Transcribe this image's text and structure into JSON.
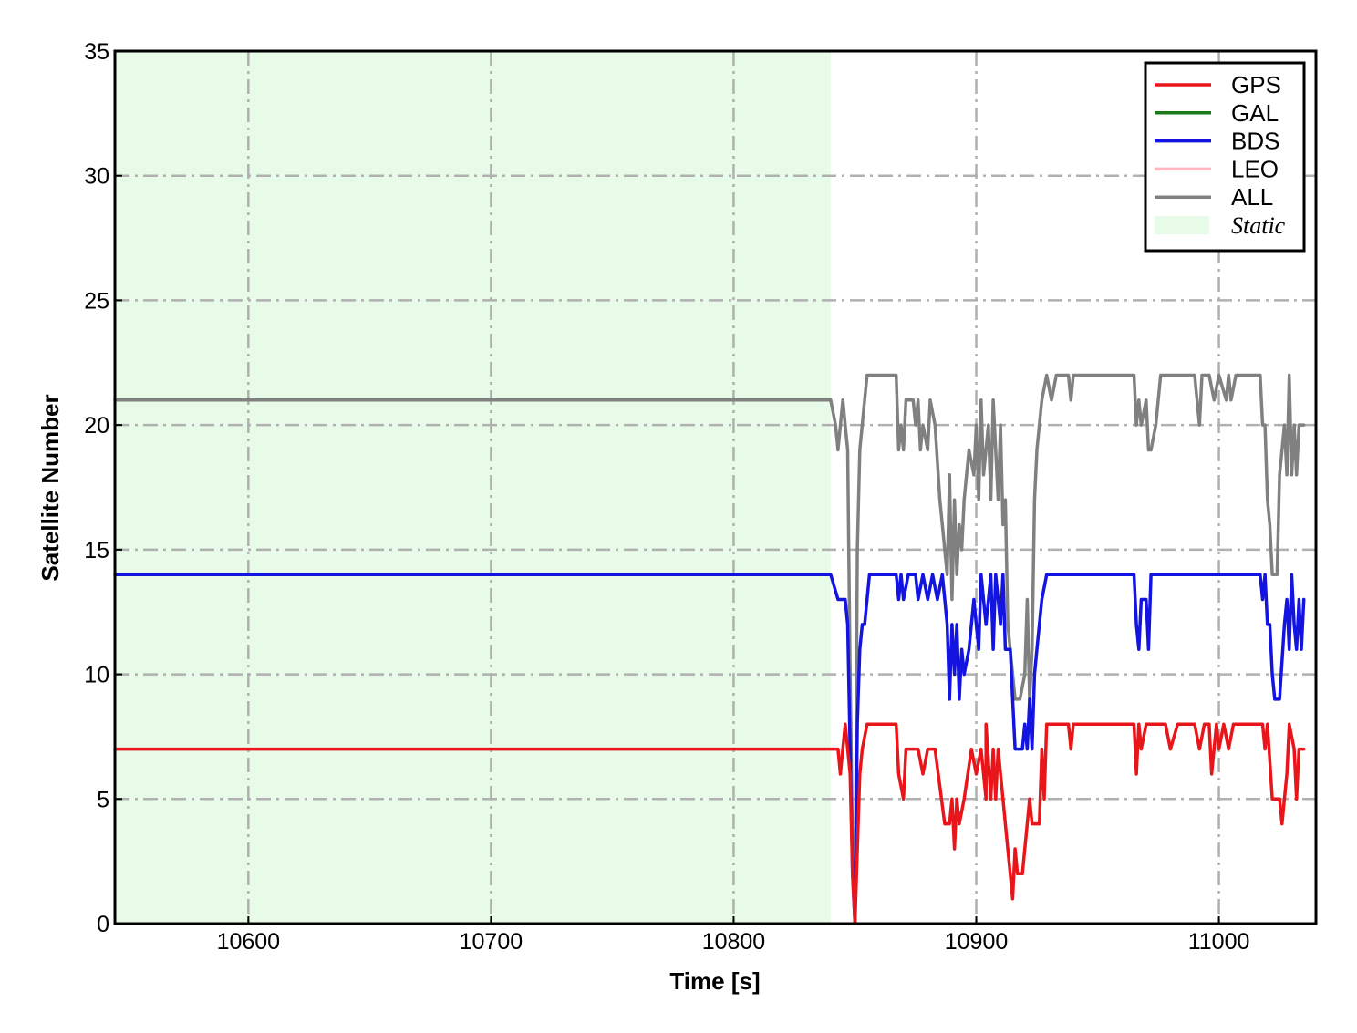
{
  "chart_data": {
    "type": "line",
    "title": "",
    "xlabel": "Time [s]",
    "ylabel": "Satellite Number",
    "xlim": [
      10545,
      11040
    ],
    "ylim": [
      0,
      35
    ],
    "xticks": [
      10600,
      10700,
      10800,
      10900,
      11000
    ],
    "yticks": [
      0,
      5,
      10,
      15,
      20,
      25,
      30,
      35
    ],
    "grid": true,
    "legend_position": "top-right",
    "static_region": {
      "label": "Static",
      "x_start": 10545,
      "x_end": 10840,
      "color": "#e8fbe8"
    },
    "series": [
      {
        "name": "GPS",
        "color": "#e8161a",
        "points": [
          [
            10545,
            7
          ],
          [
            10840,
            7
          ],
          [
            10843,
            7
          ],
          [
            10844,
            6
          ],
          [
            10846,
            8
          ],
          [
            10848,
            6
          ],
          [
            10849,
            2
          ],
          [
            10850,
            0
          ],
          [
            10852,
            6
          ],
          [
            10853,
            7
          ],
          [
            10855,
            8
          ],
          [
            10867,
            8
          ],
          [
            10868,
            6
          ],
          [
            10870,
            5
          ],
          [
            10871,
            7
          ],
          [
            10876,
            7
          ],
          [
            10878,
            6
          ],
          [
            10880,
            7
          ],
          [
            10883,
            7
          ],
          [
            10887,
            4
          ],
          [
            10889,
            4
          ],
          [
            10890,
            5
          ],
          [
            10891,
            3
          ],
          [
            10892,
            5
          ],
          [
            10893,
            4
          ],
          [
            10895,
            5
          ],
          [
            10898,
            7
          ],
          [
            10900,
            6
          ],
          [
            10902,
            7
          ],
          [
            10904,
            5
          ],
          [
            10904,
            8
          ],
          [
            10906,
            5
          ],
          [
            10907,
            7
          ],
          [
            10908,
            5
          ],
          [
            10909,
            7
          ],
          [
            10911,
            5
          ],
          [
            10912,
            4
          ],
          [
            10915,
            1
          ],
          [
            10916,
            3
          ],
          [
            10917,
            2
          ],
          [
            10919,
            2
          ],
          [
            10921,
            4
          ],
          [
            10922,
            5
          ],
          [
            10923,
            4
          ],
          [
            10926,
            4
          ],
          [
            10927,
            7
          ],
          [
            10928,
            5
          ],
          [
            10929,
            8
          ],
          [
            10938,
            8
          ],
          [
            10939,
            7
          ],
          [
            10940,
            8
          ],
          [
            10965,
            8
          ],
          [
            10966,
            6
          ],
          [
            10967,
            8
          ],
          [
            10968,
            7
          ],
          [
            10970,
            8
          ],
          [
            10978,
            8
          ],
          [
            10980,
            7
          ],
          [
            10983,
            8
          ],
          [
            10990,
            8
          ],
          [
            10992,
            7
          ],
          [
            10994,
            8
          ],
          [
            10996,
            8
          ],
          [
            10997,
            6
          ],
          [
            10999,
            8
          ],
          [
            11000,
            7
          ],
          [
            11002,
            8
          ],
          [
            11004,
            7
          ],
          [
            11006,
            8
          ],
          [
            11018,
            8
          ],
          [
            11019,
            7
          ],
          [
            11020,
            8
          ],
          [
            11022,
            5
          ],
          [
            11025,
            5
          ],
          [
            11026,
            4
          ],
          [
            11027,
            5
          ],
          [
            11028,
            6
          ],
          [
            11029,
            8
          ],
          [
            11031,
            7
          ],
          [
            11032,
            5
          ],
          [
            11033,
            7
          ],
          [
            11035,
            7
          ]
        ]
      },
      {
        "name": "GAL",
        "color": "#1a7a1a",
        "points": []
      },
      {
        "name": "BDS",
        "color": "#1414e0",
        "points": [
          [
            10545,
            14
          ],
          [
            10840,
            14
          ],
          [
            10843,
            13
          ],
          [
            10846,
            13
          ],
          [
            10847,
            12
          ],
          [
            10848,
            7
          ],
          [
            10849,
            2
          ],
          [
            10850,
            0
          ],
          [
            10851,
            8
          ],
          [
            10852,
            11
          ],
          [
            10853,
            12
          ],
          [
            10854,
            12
          ],
          [
            10856,
            14
          ],
          [
            10867,
            14
          ],
          [
            10868,
            13
          ],
          [
            10869,
            14
          ],
          [
            10870,
            13
          ],
          [
            10872,
            14
          ],
          [
            10875,
            14
          ],
          [
            10876,
            13
          ],
          [
            10878,
            14
          ],
          [
            10880,
            13
          ],
          [
            10882,
            14
          ],
          [
            10884,
            13
          ],
          [
            10886,
            14
          ],
          [
            10888,
            12
          ],
          [
            10889,
            9
          ],
          [
            10890,
            12
          ],
          [
            10891,
            10
          ],
          [
            10892,
            12
          ],
          [
            10893,
            9
          ],
          [
            10894,
            11
          ],
          [
            10895,
            10
          ],
          [
            10897,
            11
          ],
          [
            10899,
            13
          ],
          [
            10900,
            12
          ],
          [
            10901,
            11
          ],
          [
            10902,
            14
          ],
          [
            10903,
            13
          ],
          [
            10904,
            12
          ],
          [
            10906,
            14
          ],
          [
            10907,
            11
          ],
          [
            10908,
            14
          ],
          [
            10909,
            13
          ],
          [
            10910,
            12
          ],
          [
            10911,
            14
          ],
          [
            10912,
            11
          ],
          [
            10914,
            11
          ],
          [
            10915,
            9
          ],
          [
            10916,
            7
          ],
          [
            10919,
            7
          ],
          [
            10920,
            8
          ],
          [
            10921,
            7
          ],
          [
            10922,
            9
          ],
          [
            10923,
            7
          ],
          [
            10924,
            10
          ],
          [
            10925,
            11
          ],
          [
            10927,
            13
          ],
          [
            10929,
            14
          ],
          [
            10963,
            14
          ],
          [
            10965,
            14
          ],
          [
            10966,
            12
          ],
          [
            10967,
            11
          ],
          [
            10968,
            13
          ],
          [
            10970,
            13
          ],
          [
            10971,
            11
          ],
          [
            10972,
            14
          ],
          [
            10985,
            14
          ],
          [
            11017,
            14
          ],
          [
            11018,
            13
          ],
          [
            11019,
            14
          ],
          [
            11020,
            12
          ],
          [
            11021,
            12
          ],
          [
            11022,
            10
          ],
          [
            11023,
            9
          ],
          [
            11025,
            9
          ],
          [
            11027,
            12
          ],
          [
            11028,
            13
          ],
          [
            11029,
            11
          ],
          [
            11030,
            14
          ],
          [
            11031,
            12
          ],
          [
            11032,
            11
          ],
          [
            11033,
            13
          ],
          [
            11034,
            11
          ],
          [
            11035,
            13
          ]
        ]
      },
      {
        "name": "LEO",
        "color": "#ffb6c1",
        "points": []
      },
      {
        "name": "ALL",
        "color": "#808080",
        "points": [
          [
            10545,
            21
          ],
          [
            10840,
            21
          ],
          [
            10842,
            20
          ],
          [
            10843,
            19
          ],
          [
            10845,
            21
          ],
          [
            10846,
            20
          ],
          [
            10847,
            19
          ],
          [
            10848,
            10
          ],
          [
            10849,
            3
          ],
          [
            10850,
            0
          ],
          [
            10851,
            15
          ],
          [
            10852,
            19
          ],
          [
            10854,
            21
          ],
          [
            10855,
            22
          ],
          [
            10867,
            22
          ],
          [
            10868,
            19
          ],
          [
            10869,
            20
          ],
          [
            10870,
            19
          ],
          [
            10871,
            21
          ],
          [
            10874,
            21
          ],
          [
            10875,
            20
          ],
          [
            10876,
            21
          ],
          [
            10877,
            19
          ],
          [
            10878,
            20
          ],
          [
            10880,
            19
          ],
          [
            10881,
            21
          ],
          [
            10883,
            20
          ],
          [
            10885,
            17
          ],
          [
            10886,
            16
          ],
          [
            10887,
            15
          ],
          [
            10888,
            14
          ],
          [
            10889,
            18
          ],
          [
            10890,
            13
          ],
          [
            10891,
            17
          ],
          [
            10892,
            14
          ],
          [
            10893,
            16
          ],
          [
            10894,
            15
          ],
          [
            10895,
            17
          ],
          [
            10897,
            19
          ],
          [
            10899,
            18
          ],
          [
            10900,
            20
          ],
          [
            10901,
            17
          ],
          [
            10902,
            21
          ],
          [
            10903,
            18
          ],
          [
            10905,
            20
          ],
          [
            10906,
            17
          ],
          [
            10907,
            21
          ],
          [
            10908,
            19
          ],
          [
            10909,
            17
          ],
          [
            10910,
            20
          ],
          [
            10911,
            16
          ],
          [
            10912,
            17
          ],
          [
            10913,
            12
          ],
          [
            10915,
            10
          ],
          [
            10916,
            9
          ],
          [
            10918,
            9
          ],
          [
            10920,
            10
          ],
          [
            10921,
            13
          ],
          [
            10922,
            9
          ],
          [
            10923,
            11
          ],
          [
            10924,
            17
          ],
          [
            10925,
            19
          ],
          [
            10927,
            21
          ],
          [
            10929,
            22
          ],
          [
            10931,
            21
          ],
          [
            10933,
            22
          ],
          [
            10938,
            22
          ],
          [
            10939,
            21
          ],
          [
            10940,
            22
          ],
          [
            10965,
            22
          ],
          [
            10966,
            20
          ],
          [
            10967,
            21
          ],
          [
            10968,
            20
          ],
          [
            10970,
            21
          ],
          [
            10971,
            19
          ],
          [
            10972,
            19
          ],
          [
            10974,
            20
          ],
          [
            10976,
            22
          ],
          [
            10990,
            22
          ],
          [
            10991,
            21
          ],
          [
            10992,
            20
          ],
          [
            10993,
            22
          ],
          [
            10996,
            22
          ],
          [
            10998,
            21
          ],
          [
            11000,
            22
          ],
          [
            11003,
            21
          ],
          [
            11004,
            22
          ],
          [
            11005,
            21
          ],
          [
            11007,
            22
          ],
          [
            11017,
            22
          ],
          [
            11018,
            20
          ],
          [
            11019,
            20
          ],
          [
            11020,
            17
          ],
          [
            11021,
            16
          ],
          [
            11022,
            14
          ],
          [
            11024,
            14
          ],
          [
            11025,
            18
          ],
          [
            11026,
            19
          ],
          [
            11027,
            20
          ],
          [
            11028,
            18
          ],
          [
            11029,
            22
          ],
          [
            11030,
            18
          ],
          [
            11031,
            20
          ],
          [
            11032,
            18
          ],
          [
            11033,
            20
          ],
          [
            11035,
            20
          ]
        ]
      }
    ]
  }
}
